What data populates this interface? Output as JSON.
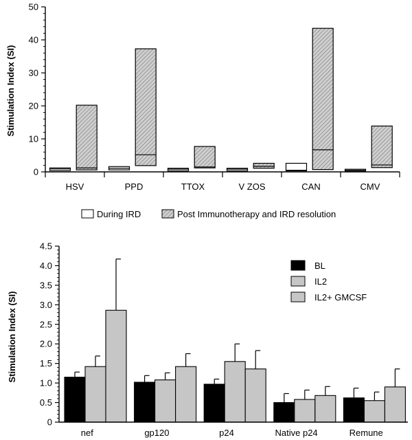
{
  "chart_data": [
    {
      "type": "box",
      "title": "",
      "xlabel": "",
      "ylabel": "Stimulation Index (SI)",
      "ylim": [
        0,
        50
      ],
      "yticks": [
        0,
        10,
        20,
        30,
        40,
        50
      ],
      "categories": [
        "HSV",
        "PPD",
        "TTOX",
        "V ZOS",
        "CAN",
        "CMV"
      ],
      "series": [
        {
          "name": "During IRD",
          "fill": "white",
          "boxes": [
            {
              "low": 0.4,
              "median": 0.9,
              "high": 1.2
            },
            {
              "low": 0.6,
              "median": 1.1,
              "high": 1.6
            },
            {
              "low": 0.3,
              "median": 0.8,
              "high": 1.1
            },
            {
              "low": 0.3,
              "median": 0.8,
              "high": 1.1
            },
            {
              "low": 0.3,
              "median": 0.5,
              "high": 2.6
            },
            {
              "low": 0.2,
              "median": 0.5,
              "high": 0.8
            }
          ]
        },
        {
          "name": "Post Immunotherapy and IRD resolution",
          "fill": "hatched",
          "boxes": [
            {
              "low": 0.6,
              "median": 1.2,
              "high": 20.2
            },
            {
              "low": 1.9,
              "median": 5.2,
              "high": 37.3
            },
            {
              "low": 1.2,
              "median": 1.5,
              "high": 7.7
            },
            {
              "low": 1.1,
              "median": 1.7,
              "high": 2.6
            },
            {
              "low": 0.7,
              "median": 6.7,
              "high": 43.5
            },
            {
              "low": 1.3,
              "median": 2.1,
              "high": 13.9
            }
          ]
        }
      ],
      "legend": "bottom-center"
    },
    {
      "type": "bar",
      "title": "",
      "xlabel": "",
      "ylabel": "Stimulation Index (SI)",
      "ylim": [
        0,
        4.5
      ],
      "yticks": [
        0,
        0.5,
        1.0,
        1.5,
        2.0,
        2.5,
        3.0,
        3.5,
        4.0,
        4.5
      ],
      "ytick_labels": [
        "0",
        "0.5",
        "1.0",
        "1.5",
        "2.0",
        "2.5",
        "3.0",
        "3.5",
        "4.0",
        "4.5"
      ],
      "categories": [
        "nef",
        "gp120",
        "p24",
        "Native p24",
        "Remune"
      ],
      "series": [
        {
          "name": "BL",
          "color": "#000000",
          "values": [
            1.15,
            1.02,
            0.97,
            0.5,
            0.62
          ],
          "errors": [
            0.13,
            0.17,
            0.13,
            0.23,
            0.25
          ]
        },
        {
          "name": "IL2",
          "color": "#c6c6c6",
          "values": [
            1.42,
            1.08,
            1.55,
            0.58,
            0.55
          ],
          "errors": [
            0.27,
            0.18,
            0.45,
            0.24,
            0.22
          ]
        },
        {
          "name": "IL2+ GMCSF",
          "color": "#c6c6c6",
          "values": [
            2.86,
            1.42,
            1.36,
            0.68,
            0.9
          ],
          "errors": [
            1.31,
            0.33,
            0.47,
            0.23,
            0.46
          ]
        }
      ],
      "legend": "top-right"
    }
  ]
}
